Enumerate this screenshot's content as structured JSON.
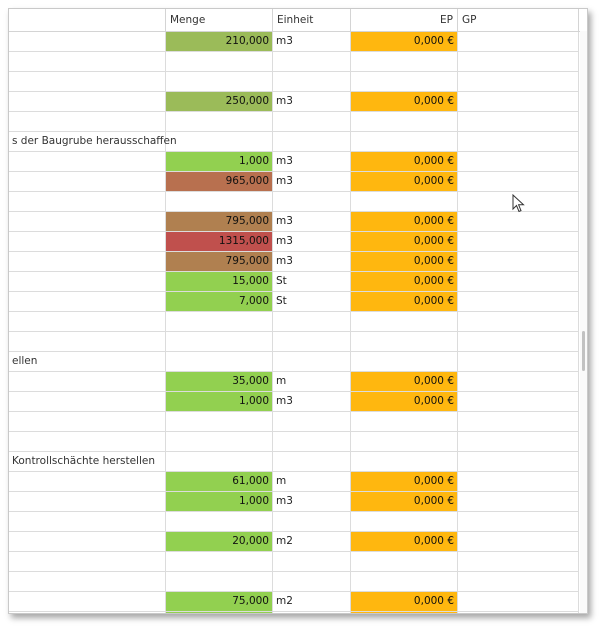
{
  "grid": {
    "columns": {
      "menge": "Menge",
      "einheit": "Einheit",
      "ep": "EP",
      "gp": "GP"
    },
    "colors": {
      "green": "#92d050",
      "olive": "#9bbb59",
      "brown": "#b08050",
      "rust": "#b8704f",
      "red": "#c0504d",
      "ep_orange": "#ffb70f"
    },
    "rows": [
      {
        "desc": "",
        "qty": "210,000",
        "unit": "m3",
        "ep": "0,000 €",
        "color": "olive"
      },
      {
        "desc": "",
        "qty": "",
        "unit": "",
        "ep": "",
        "color": ""
      },
      {
        "desc": "",
        "qty": "",
        "unit": "",
        "ep": "",
        "color": ""
      },
      {
        "desc": "",
        "qty": "250,000",
        "unit": "m3",
        "ep": "0,000 €",
        "color": "olive"
      },
      {
        "desc": "",
        "qty": "",
        "unit": "",
        "ep": "",
        "color": ""
      },
      {
        "desc": "s der Baugrube herausschaffen",
        "qty": "",
        "unit": "",
        "ep": "",
        "color": ""
      },
      {
        "desc": "",
        "qty": "1,000",
        "unit": "m3",
        "ep": "0,000 €",
        "color": "green"
      },
      {
        "desc": "",
        "qty": "965,000",
        "unit": "m3",
        "ep": "0,000 €",
        "color": "rust"
      },
      {
        "desc": "",
        "qty": "",
        "unit": "",
        "ep": "",
        "color": ""
      },
      {
        "desc": "",
        "qty": "795,000",
        "unit": "m3",
        "ep": "0,000 €",
        "color": "brown"
      },
      {
        "desc": "",
        "qty": "1315,000",
        "unit": "m3",
        "ep": "0,000 €",
        "color": "red"
      },
      {
        "desc": "",
        "qty": "795,000",
        "unit": "m3",
        "ep": "0,000 €",
        "color": "brown"
      },
      {
        "desc": "",
        "qty": "15,000",
        "unit": "St",
        "ep": "0,000 €",
        "color": "green"
      },
      {
        "desc": "",
        "qty": "7,000",
        "unit": "St",
        "ep": "0,000 €",
        "color": "green"
      },
      {
        "desc": "",
        "qty": "",
        "unit": "",
        "ep": "",
        "color": ""
      },
      {
        "desc": "",
        "qty": "",
        "unit": "",
        "ep": "",
        "color": ""
      },
      {
        "desc": "ellen",
        "qty": "",
        "unit": "",
        "ep": "",
        "color": ""
      },
      {
        "desc": "",
        "qty": "35,000",
        "unit": "m",
        "ep": "0,000 €",
        "color": "green"
      },
      {
        "desc": "",
        "qty": "1,000",
        "unit": "m3",
        "ep": "0,000 €",
        "color": "green"
      },
      {
        "desc": "",
        "qty": "",
        "unit": "",
        "ep": "",
        "color": ""
      },
      {
        "desc": "",
        "qty": "",
        "unit": "",
        "ep": "",
        "color": ""
      },
      {
        "desc": " Kontrollschächte herstellen",
        "qty": "",
        "unit": "",
        "ep": "",
        "color": ""
      },
      {
        "desc": "",
        "qty": "61,000",
        "unit": "m",
        "ep": "0,000 €",
        "color": "green"
      },
      {
        "desc": "",
        "qty": "1,000",
        "unit": "m3",
        "ep": "0,000 €",
        "color": "green"
      },
      {
        "desc": "",
        "qty": "",
        "unit": "",
        "ep": "",
        "color": ""
      },
      {
        "desc": "",
        "qty": "20,000",
        "unit": "m2",
        "ep": "0,000 €",
        "color": "green"
      },
      {
        "desc": "",
        "qty": "",
        "unit": "",
        "ep": "",
        "color": ""
      },
      {
        "desc": "",
        "qty": "",
        "unit": "",
        "ep": "",
        "color": ""
      },
      {
        "desc": "",
        "qty": "75,000",
        "unit": "m2",
        "ep": "0,000 €",
        "color": "green"
      },
      {
        "desc": "",
        "qty": "",
        "unit": "",
        "ep": "",
        "color": "green"
      }
    ]
  }
}
